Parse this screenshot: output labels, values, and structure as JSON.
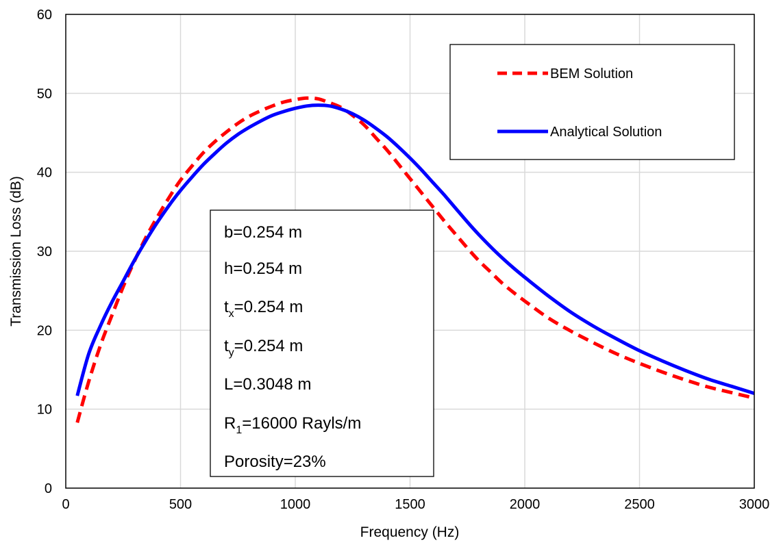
{
  "chart_data": {
    "type": "line",
    "title": "",
    "xlabel": "Frequency (Hz)",
    "ylabel": "Transmission Loss (dB)",
    "xlim": [
      0,
      3000
    ],
    "ylim": [
      0,
      60
    ],
    "xticks": [
      0,
      500,
      1000,
      1500,
      2000,
      2500,
      3000
    ],
    "yticks": [
      0,
      10,
      20,
      30,
      40,
      50,
      60
    ],
    "grid": true,
    "legend_position": "top-right",
    "series": [
      {
        "name": "BEM Solution",
        "color": "#ff0000",
        "style": "dashed",
        "x": [
          50,
          100,
          150,
          200,
          250,
          300,
          350,
          400,
          450,
          500,
          550,
          600,
          650,
          700,
          750,
          800,
          850,
          900,
          950,
          1000,
          1050,
          1100,
          1150,
          1200,
          1250,
          1300,
          1350,
          1400,
          1450,
          1500,
          1550,
          1600,
          1650,
          1700,
          1750,
          1800,
          1850,
          1900,
          1950,
          2000,
          2100,
          2200,
          2300,
          2400,
          2500,
          2600,
          2700,
          2800,
          2900,
          3000
        ],
        "y": [
          8.3,
          13.5,
          18.0,
          21.8,
          25.5,
          28.8,
          31.8,
          34.4,
          36.8,
          39.0,
          40.8,
          42.5,
          43.9,
          45.1,
          46.2,
          47.1,
          47.8,
          48.4,
          48.9,
          49.2,
          49.4,
          49.3,
          48.8,
          48.2,
          47.2,
          46.0,
          44.4,
          42.8,
          41.0,
          39.2,
          37.4,
          35.6,
          33.8,
          32.1,
          30.4,
          28.8,
          27.4,
          26.0,
          24.8,
          23.7,
          21.6,
          19.9,
          18.4,
          17.0,
          15.8,
          14.7,
          13.7,
          12.8,
          12.1,
          11.4
        ]
      },
      {
        "name": "Analytical Solution",
        "color": "#0000ff",
        "style": "solid",
        "x": [
          50,
          100,
          150,
          200,
          250,
          300,
          350,
          400,
          450,
          500,
          550,
          600,
          650,
          700,
          750,
          800,
          850,
          900,
          950,
          1000,
          1050,
          1100,
          1150,
          1200,
          1250,
          1300,
          1350,
          1400,
          1450,
          1500,
          1550,
          1600,
          1650,
          1700,
          1750,
          1800,
          1850,
          1900,
          1950,
          2000,
          2100,
          2200,
          2300,
          2400,
          2500,
          2600,
          2700,
          2800,
          2900,
          3000
        ],
        "y": [
          11.7,
          17.0,
          20.5,
          23.5,
          26.2,
          28.9,
          31.4,
          33.7,
          35.8,
          37.7,
          39.4,
          41.0,
          42.4,
          43.7,
          44.8,
          45.7,
          46.5,
          47.2,
          47.7,
          48.1,
          48.4,
          48.5,
          48.4,
          48.0,
          47.4,
          46.6,
          45.6,
          44.5,
          43.2,
          41.8,
          40.3,
          38.7,
          37.1,
          35.4,
          33.7,
          32.1,
          30.6,
          29.2,
          27.9,
          26.7,
          24.4,
          22.3,
          20.5,
          18.9,
          17.4,
          16.1,
          14.9,
          13.8,
          12.9,
          12.0
        ]
      }
    ]
  },
  "legend": {
    "items": [
      {
        "label": "BEM Solution",
        "color": "#ff0000"
      },
      {
        "label": "Analytical Solution",
        "color": "#0000ff"
      }
    ]
  },
  "params": {
    "b": "b=0.254 m",
    "h": "h=0.254 m",
    "tx_base": "t",
    "tx_sub": "x",
    "tx_rest": "=0.254 m",
    "ty_base": "t",
    "ty_sub": "y",
    "ty_rest": "=0.254 m",
    "L": "L=0.3048 m",
    "R_base": "R",
    "R_sub": "1",
    "R_rest": "=16000 Rayls/m",
    "porosity": "Porosity=23%"
  }
}
